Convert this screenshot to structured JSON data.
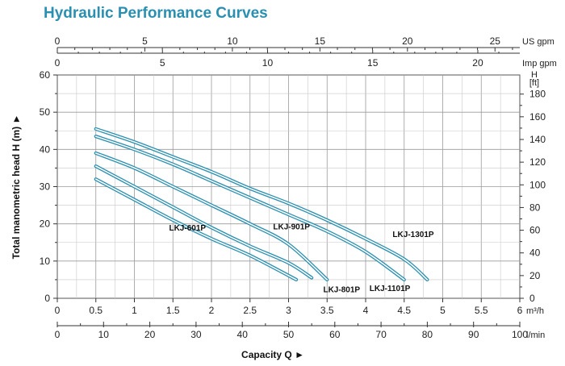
{
  "chart_data": {
    "type": "line",
    "title": "Hydraulic Performance Curves",
    "xlabel": "Capacity Q ►",
    "ylabel": "Total manometric head H (m) ►",
    "grid": true,
    "x_unit": "m³/h",
    "xlim": [
      0,
      6
    ],
    "ylim": [
      0,
      60
    ],
    "x_ticks": [
      0,
      0.5,
      1,
      1.5,
      2,
      2.5,
      3,
      3.5,
      4,
      4.5,
      5,
      5.5,
      6
    ],
    "y_ticks": [
      0,
      10,
      20,
      30,
      40,
      50,
      60
    ],
    "x_ticks_labels": [
      "0",
      "0.5",
      "1",
      "1.5",
      "2",
      "2.5",
      "3",
      "3.5",
      "4",
      "4.5",
      "5",
      "5.5",
      "6"
    ],
    "y_ticks_labels": [
      "0",
      "10",
      "20",
      "30",
      "40",
      "50",
      "60"
    ],
    "secondary_axes": {
      "us_gpm": {
        "label": "US gpm",
        "ticks": [
          0,
          5,
          10,
          15,
          20,
          25
        ],
        "ticks_labels": [
          "0",
          "5",
          "10",
          "15",
          "20",
          "25"
        ]
      },
      "imp_gpm": {
        "label": "Imp gpm",
        "ticks": [
          0,
          5,
          10,
          15,
          20
        ],
        "ticks_labels": [
          "0",
          "5",
          "10",
          "15",
          "20"
        ]
      },
      "lmin": {
        "label": "l/min",
        "ticks": [
          0,
          10,
          20,
          30,
          40,
          50,
          60,
          70,
          80,
          90,
          100
        ],
        "ticks_labels": [
          "0",
          "10",
          "20",
          "30",
          "40",
          "50",
          "60",
          "70",
          "80",
          "90",
          "100"
        ]
      },
      "head_ft": {
        "label": "H [ft]",
        "ticks": [
          0,
          20,
          40,
          60,
          80,
          100,
          120,
          140,
          160,
          180
        ],
        "ticks_labels": [
          "0",
          "20",
          "40",
          "60",
          "80",
          "100",
          "120",
          "140",
          "160",
          "180"
        ]
      }
    },
    "series": [
      {
        "name": "LKJ-601P",
        "points": [
          [
            0.5,
            32
          ],
          [
            1.0,
            26.5
          ],
          [
            1.5,
            21
          ],
          [
            2.0,
            16
          ],
          [
            2.5,
            11.5
          ],
          [
            3.1,
            5
          ]
        ]
      },
      {
        "name": "LKJ-801P",
        "points": [
          [
            0.5,
            35.5
          ],
          [
            1.0,
            30
          ],
          [
            1.5,
            24.5
          ],
          [
            2.0,
            19
          ],
          [
            2.5,
            14
          ],
          [
            3.0,
            9.5
          ],
          [
            3.3,
            5.5
          ]
        ]
      },
      {
        "name": "LKJ-901P",
        "points": [
          [
            0.5,
            39
          ],
          [
            1.0,
            35
          ],
          [
            1.5,
            30
          ],
          [
            2.0,
            25
          ],
          [
            2.5,
            20
          ],
          [
            3.0,
            14.5
          ],
          [
            3.5,
            5
          ]
        ]
      },
      {
        "name": "LKJ-1101P",
        "points": [
          [
            0.5,
            43.5
          ],
          [
            1.0,
            40
          ],
          [
            1.5,
            36
          ],
          [
            2.0,
            31.5
          ],
          [
            2.5,
            27
          ],
          [
            3.0,
            22.5
          ],
          [
            3.5,
            18
          ],
          [
            4.0,
            12.5
          ],
          [
            4.5,
            5
          ]
        ]
      },
      {
        "name": "LKJ-1301P",
        "points": [
          [
            0.5,
            45.5
          ],
          [
            1.0,
            42
          ],
          [
            1.5,
            38
          ],
          [
            2.0,
            34
          ],
          [
            2.5,
            29.5
          ],
          [
            3.0,
            25.5
          ],
          [
            3.5,
            21
          ],
          [
            4.0,
            16
          ],
          [
            4.5,
            10.5
          ],
          [
            4.8,
            5
          ]
        ]
      }
    ],
    "line_color": "#2a8fb0"
  }
}
